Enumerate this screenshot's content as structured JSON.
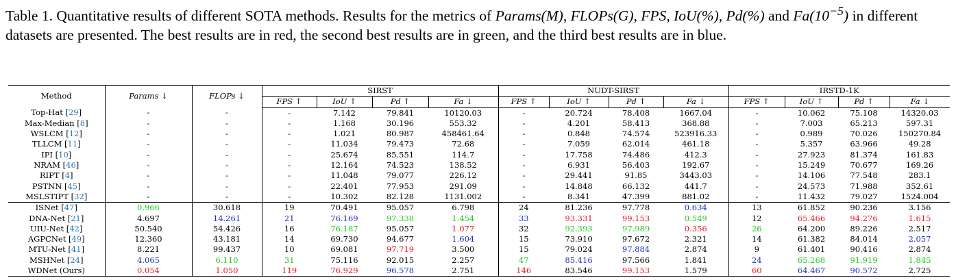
{
  "caption": {
    "label": "Table 1.",
    "part1": " Quantitative results of different SOTA methods. Results for the metrics of ",
    "m_params": "Params(M)",
    "m_flops": "FLOPs(G)",
    "m_fps": "FPS",
    "m_iou": "IoU(%)",
    "m_pd": "Pd(%)",
    "m_fa": "Fa(10",
    "m_fa_exp": "−5",
    "m_fa_close": ")",
    "part2": " and ",
    "part3": " in different datasets are presented. The best results are in red, the second best results are in green, and the third best results are in blue."
  },
  "table": {
    "col_method": "Method",
    "col_params": "Params ↓",
    "col_flops": "FLOPs ↓",
    "datasets": [
      "SIRST",
      "NUDT-SIRST",
      "IRSTD-1K"
    ],
    "metrics": [
      "FPS ↑",
      "IoU ↑",
      "Pd ↑",
      "Fa ↓"
    ],
    "colors": {
      "red": "#e8161d",
      "green": "#1ec81e",
      "blue": "#1c2fc4"
    },
    "rows": [
      {
        "name": "Top-Hat",
        "ref": "29",
        "cells": [
          [
            "-"
          ],
          [
            "-"
          ],
          [
            "-"
          ],
          [
            "7.142"
          ],
          [
            "79.841"
          ],
          [
            "10120.03"
          ],
          [
            "-"
          ],
          [
            "20.724"
          ],
          [
            "78.408"
          ],
          [
            "1667.04"
          ],
          [
            "-"
          ],
          [
            "10.062"
          ],
          [
            "75.108"
          ],
          [
            "14320.03"
          ]
        ]
      },
      {
        "name": "Max-Median",
        "ref": "8",
        "cells": [
          [
            "-"
          ],
          [
            "-"
          ],
          [
            "-"
          ],
          [
            "1.168"
          ],
          [
            "30.196"
          ],
          [
            "553.32"
          ],
          [
            "-"
          ],
          [
            "4.201"
          ],
          [
            "58.413"
          ],
          [
            "368.88"
          ],
          [
            "-"
          ],
          [
            "7.003"
          ],
          [
            "65.213"
          ],
          [
            "597.31"
          ]
        ]
      },
      {
        "name": "WSLCM",
        "ref": "12",
        "cells": [
          [
            "-"
          ],
          [
            "-"
          ],
          [
            "-"
          ],
          [
            "1.021"
          ],
          [
            "80.987"
          ],
          [
            "458461.64"
          ],
          [
            "-"
          ],
          [
            "0.848"
          ],
          [
            "74.574"
          ],
          [
            "523916.33"
          ],
          [
            "-"
          ],
          [
            "0.989"
          ],
          [
            "70.026"
          ],
          [
            "150270.84"
          ]
        ]
      },
      {
        "name": "TLLCM",
        "ref": "11",
        "cells": [
          [
            "-"
          ],
          [
            "-"
          ],
          [
            "-"
          ],
          [
            "11.034"
          ],
          [
            "79.473"
          ],
          [
            "72.68"
          ],
          [
            "-"
          ],
          [
            "7.059"
          ],
          [
            "62.014"
          ],
          [
            "461.18"
          ],
          [
            "-"
          ],
          [
            "5.357"
          ],
          [
            "63.966"
          ],
          [
            "49.28"
          ]
        ]
      },
      {
        "name": "IPI",
        "ref": "10",
        "cells": [
          [
            "-"
          ],
          [
            "-"
          ],
          [
            "-"
          ],
          [
            "25.674"
          ],
          [
            "85.551"
          ],
          [
            "114.7"
          ],
          [
            "-"
          ],
          [
            "17.758"
          ],
          [
            "74.486"
          ],
          [
            "412.3"
          ],
          [
            "-"
          ],
          [
            "27.923"
          ],
          [
            "81.374"
          ],
          [
            "161.83"
          ]
        ]
      },
      {
        "name": "NRAM",
        "ref": "46",
        "cells": [
          [
            "-"
          ],
          [
            "-"
          ],
          [
            "-"
          ],
          [
            "12.164"
          ],
          [
            "74.523"
          ],
          [
            "138.52"
          ],
          [
            "-"
          ],
          [
            "6.931"
          ],
          [
            "56.403"
          ],
          [
            "192.67"
          ],
          [
            "-"
          ],
          [
            "15.249"
          ],
          [
            "70.677"
          ],
          [
            "169.26"
          ]
        ]
      },
      {
        "name": "RIPT",
        "ref": "4",
        "cells": [
          [
            "-"
          ],
          [
            "-"
          ],
          [
            "-"
          ],
          [
            "11.048"
          ],
          [
            "79.077"
          ],
          [
            "226.12"
          ],
          [
            "-"
          ],
          [
            "29.441"
          ],
          [
            "91.85"
          ],
          [
            "3443.03"
          ],
          [
            "-"
          ],
          [
            "14.106"
          ],
          [
            "77.548"
          ],
          [
            "283.1"
          ]
        ]
      },
      {
        "name": "PSTNN",
        "ref": "45",
        "cells": [
          [
            "-"
          ],
          [
            "-"
          ],
          [
            "-"
          ],
          [
            "22.401"
          ],
          [
            "77.953"
          ],
          [
            "291.09"
          ],
          [
            "-"
          ],
          [
            "14.848"
          ],
          [
            "66.132"
          ],
          [
            "441.7"
          ],
          [
            "-"
          ],
          [
            "24.573"
          ],
          [
            "71.988"
          ],
          [
            "352.61"
          ]
        ]
      },
      {
        "name": "MSLSTIPT",
        "ref": "32",
        "cells": [
          [
            "-"
          ],
          [
            "-"
          ],
          [
            "-"
          ],
          [
            "10.302"
          ],
          [
            "82.128"
          ],
          [
            "1131.002"
          ],
          [
            "-"
          ],
          [
            "8.341"
          ],
          [
            "47.399"
          ],
          [
            "881.02"
          ],
          [
            "-"
          ],
          [
            "11.432"
          ],
          [
            "79.027"
          ],
          [
            "1524.004"
          ]
        ]
      },
      {
        "name": "ISNet",
        "ref": "47",
        "cells": [
          [
            "0.966",
            "green"
          ],
          [
            "30.618"
          ],
          [
            "19"
          ],
          [
            "70.491"
          ],
          [
            "95.057"
          ],
          [
            "6.798"
          ],
          [
            "24"
          ],
          [
            "81.236"
          ],
          [
            "97.778"
          ],
          [
            "0.634",
            "blue"
          ],
          [
            "13"
          ],
          [
            "61.852"
          ],
          [
            "90.236"
          ],
          [
            "3.156"
          ]
        ]
      },
      {
        "name": "DNA-Net",
        "ref": "21",
        "cells": [
          [
            "4.697"
          ],
          [
            "14.261",
            "blue"
          ],
          [
            "21",
            "blue"
          ],
          [
            "76.169",
            "blue"
          ],
          [
            "97.338",
            "green"
          ],
          [
            "1.454",
            "green"
          ],
          [
            "33",
            "blue"
          ],
          [
            "93.331",
            "red"
          ],
          [
            "99.153",
            "red"
          ],
          [
            "0.549",
            "green"
          ],
          [
            "12"
          ],
          [
            "65.466",
            "red"
          ],
          [
            "94.276",
            "red"
          ],
          [
            "1.615",
            "red"
          ]
        ]
      },
      {
        "name": "UIU-Net",
        "ref": "42",
        "cells": [
          [
            "50.540"
          ],
          [
            "54.426"
          ],
          [
            "16"
          ],
          [
            "76.187",
            "green"
          ],
          [
            "95.057"
          ],
          [
            "1.077",
            "red"
          ],
          [
            "32"
          ],
          [
            "92.393",
            "green"
          ],
          [
            "97.989",
            "green"
          ],
          [
            "0.356",
            "red"
          ],
          [
            "26",
            "green"
          ],
          [
            "64.200"
          ],
          [
            "89.226"
          ],
          [
            "2.517"
          ]
        ]
      },
      {
        "name": "AGPCNet",
        "ref": "49",
        "cells": [
          [
            "12.360"
          ],
          [
            "43.181"
          ],
          [
            "14"
          ],
          [
            "69.730"
          ],
          [
            "94.677"
          ],
          [
            "1.604",
            "blue"
          ],
          [
            "15"
          ],
          [
            "73.910"
          ],
          [
            "97.672"
          ],
          [
            "2.321"
          ],
          [
            "14"
          ],
          [
            "61.382"
          ],
          [
            "84.014"
          ],
          [
            "2.057",
            "blue"
          ]
        ]
      },
      {
        "name": "MTU-Net",
        "ref": "41",
        "cells": [
          [
            "8.221"
          ],
          [
            "99.437"
          ],
          [
            "10"
          ],
          [
            "69.081"
          ],
          [
            "97.719",
            "red"
          ],
          [
            "3.500"
          ],
          [
            "15"
          ],
          [
            "79.024"
          ],
          [
            "97.884",
            "blue"
          ],
          [
            "2.874"
          ],
          [
            "9"
          ],
          [
            "61.401"
          ],
          [
            "90.416"
          ],
          [
            "2.874"
          ]
        ]
      },
      {
        "name": "MSHNet",
        "ref": "24",
        "cells": [
          [
            "4.065",
            "blue"
          ],
          [
            "6.110",
            "green"
          ],
          [
            "31",
            "green"
          ],
          [
            "75.116"
          ],
          [
            "92.015"
          ],
          [
            "2.257"
          ],
          [
            "47",
            "green"
          ],
          [
            "85.416",
            "blue"
          ],
          [
            "97.566"
          ],
          [
            "1.841"
          ],
          [
            "24",
            "blue"
          ],
          [
            "65.268",
            "green"
          ],
          [
            "91.919",
            "green"
          ],
          [
            "1.845",
            "green"
          ]
        ]
      },
      {
        "name": "WDNet (Ours)",
        "ref": "",
        "cells": [
          [
            "0.054",
            "red"
          ],
          [
            "1.050",
            "red"
          ],
          [
            "119",
            "red"
          ],
          [
            "76.929",
            "red"
          ],
          [
            "96.578",
            "blue"
          ],
          [
            "2.751"
          ],
          [
            "146",
            "red"
          ],
          [
            "83.546"
          ],
          [
            "99.153",
            "red"
          ],
          [
            "1.579"
          ],
          [
            "60",
            "red"
          ],
          [
            "64.467",
            "blue"
          ],
          [
            "90.572",
            "blue"
          ],
          [
            "2.725"
          ]
        ]
      }
    ]
  }
}
